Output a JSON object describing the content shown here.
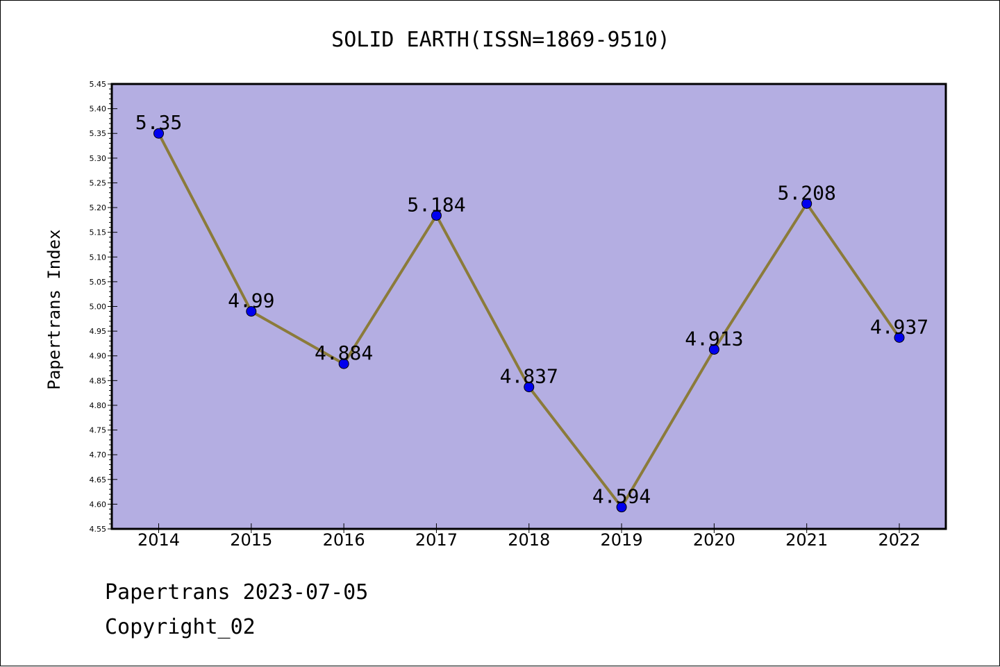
{
  "chart_data": {
    "type": "line",
    "title": "SOLID EARTH(ISSN=1869-9510)",
    "xlabel": "",
    "ylabel": "Papertrans Index",
    "categories": [
      "2014",
      "2015",
      "2016",
      "2017",
      "2018",
      "2019",
      "2020",
      "2021",
      "2022"
    ],
    "series": [
      {
        "values": [
          5.35,
          4.99,
          4.884,
          5.184,
          4.837,
          4.594,
          4.913,
          5.208,
          4.937
        ],
        "labels": [
          "5.35",
          "4.99",
          "4.884",
          "5.184",
          "4.837",
          "4.594",
          "4.913",
          "5.208",
          "4.937"
        ]
      }
    ],
    "ylim": [
      4.55,
      5.45
    ],
    "yticks": [
      "4.55",
      "4.60",
      "4.65",
      "4.70",
      "4.75",
      "4.80",
      "4.85",
      "4.90",
      "4.95",
      "5.00",
      "5.05",
      "5.10",
      "5.15",
      "5.20",
      "5.25",
      "5.30",
      "5.35",
      "5.40",
      "5.45"
    ],
    "grid": false,
    "legend": "none",
    "colors": {
      "plot_background": "#b4aee2",
      "line": "#8b7b3a",
      "marker": "#0000ee"
    }
  },
  "footer": {
    "line1": "Papertrans 2023-07-05",
    "line2": "Copyright_02"
  }
}
